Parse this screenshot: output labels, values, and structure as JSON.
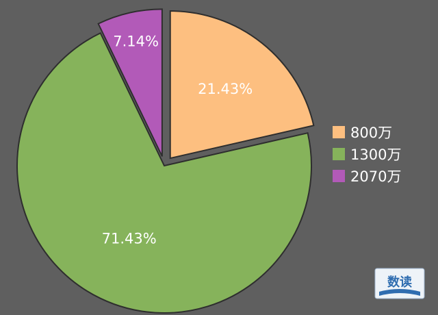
{
  "chart_data": {
    "type": "pie",
    "title": "",
    "slices": [
      {
        "name": "800万",
        "value": 21.43,
        "label": "21.43%",
        "color": "#fdbf80",
        "exploded": true
      },
      {
        "name": "1300万",
        "value": 71.43,
        "label": "71.43%",
        "color": "#86b35b",
        "exploded": false
      },
      {
        "name": "2070万",
        "value": 7.14,
        "label": "7.14%",
        "color": "#b25ab8",
        "exploded": true
      }
    ],
    "legend_position": "right"
  },
  "watermark": {
    "text": "数读",
    "color": "#2f6db0"
  }
}
